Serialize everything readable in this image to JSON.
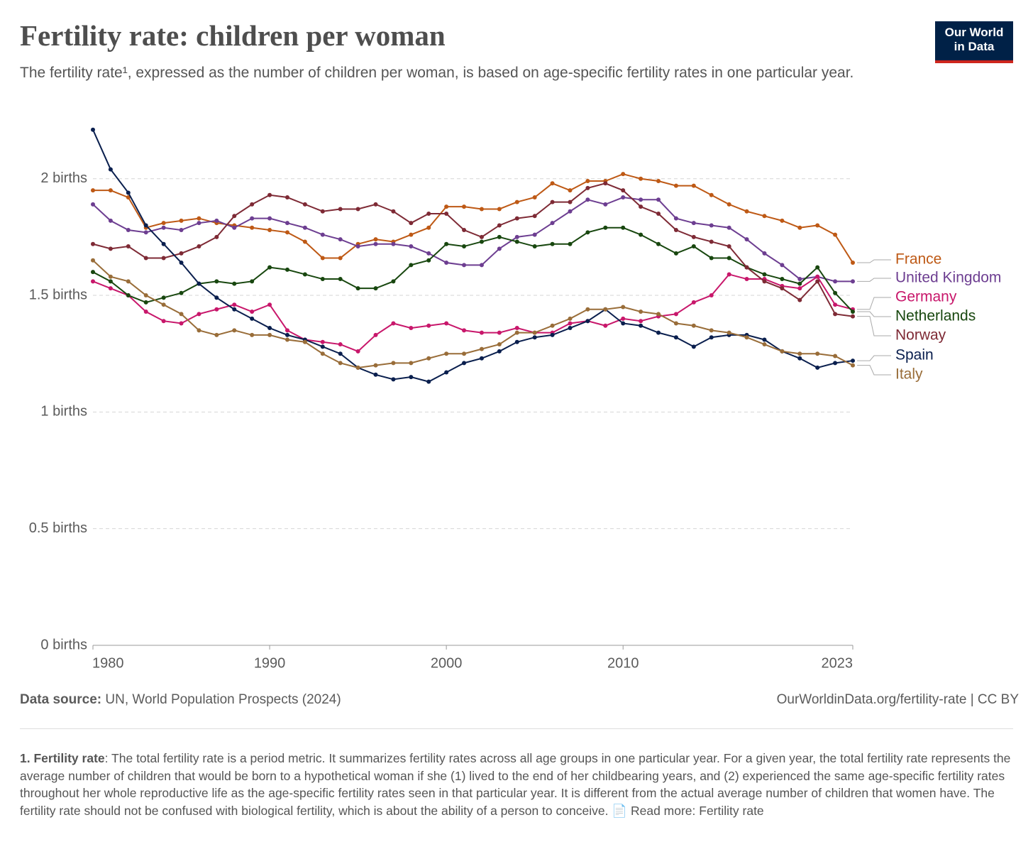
{
  "logo": {
    "line1": "Our World",
    "line2": "in Data"
  },
  "chart_data": {
    "type": "line",
    "title": "Fertility rate: children per woman",
    "subtitle": "The fertility rate¹, expressed as the number of children per woman, is based on age-specific fertility rates in one particular year.",
    "source_label": "Data source:",
    "source": "UN, World Population Prospects (2024)",
    "url": "OurWorldinData.org/fertility-rate | CC BY",
    "footnote": {
      "term": "1. Fertility rate",
      "text": ": The total fertility rate is a period metric. It summarizes fertility rates across all age groups in one particular year. For a given year, the total fertility rate represents the average number of children that would be born to a hypothetical woman if she (1) lived to the end of her childbearing years, and (2) experienced the same age-specific fertility rates throughout her whole reproductive life as the age-specific fertility rates seen in that particular year. It is different from the actual average number of children that women have. The fertility rate should not be confused with biological fertility, which is about the ability of a person to conceive.",
      "read_more": "Read more: Fertility rate"
    },
    "x": [
      1980,
      1981,
      1982,
      1983,
      1984,
      1985,
      1986,
      1987,
      1988,
      1989,
      1990,
      1991,
      1992,
      1993,
      1994,
      1995,
      1996,
      1997,
      1998,
      1999,
      2000,
      2001,
      2002,
      2003,
      2004,
      2005,
      2006,
      2007,
      2008,
      2009,
      2010,
      2011,
      2012,
      2013,
      2014,
      2015,
      2016,
      2017,
      2018,
      2019,
      2020,
      2021,
      2022,
      2023
    ],
    "xlim": [
      1980,
      2023
    ],
    "xticks": [
      1980,
      1990,
      2000,
      2010,
      2023
    ],
    "ylim": [
      0,
      2.2
    ],
    "yticks": [
      {
        "value": 0,
        "label": "0 births"
      },
      {
        "value": 0.5,
        "label": "0.5 births"
      },
      {
        "value": 1,
        "label": "1 births"
      },
      {
        "value": 1.5,
        "label": "1.5 births"
      },
      {
        "value": 2,
        "label": "2 births"
      }
    ],
    "grid": true,
    "series": [
      {
        "name": "France",
        "color": "#be5915",
        "values": [
          1.95,
          1.95,
          1.92,
          1.79,
          1.81,
          1.82,
          1.83,
          1.81,
          1.8,
          1.79,
          1.78,
          1.77,
          1.73,
          1.66,
          1.66,
          1.72,
          1.74,
          1.73,
          1.76,
          1.79,
          1.88,
          1.88,
          1.87,
          1.87,
          1.9,
          1.92,
          1.98,
          1.95,
          1.99,
          1.99,
          2.02,
          2.0,
          1.99,
          1.97,
          1.97,
          1.93,
          1.89,
          1.86,
          1.84,
          1.82,
          1.79,
          1.8,
          1.76,
          1.64
        ]
      },
      {
        "name": "United Kingdom",
        "color": "#6d3e91",
        "values": [
          1.89,
          1.82,
          1.78,
          1.77,
          1.79,
          1.78,
          1.81,
          1.82,
          1.79,
          1.83,
          1.83,
          1.81,
          1.79,
          1.76,
          1.74,
          1.71,
          1.72,
          1.72,
          1.71,
          1.68,
          1.64,
          1.63,
          1.63,
          1.7,
          1.75,
          1.76,
          1.81,
          1.86,
          1.91,
          1.89,
          1.92,
          1.91,
          1.91,
          1.83,
          1.81,
          1.8,
          1.79,
          1.74,
          1.68,
          1.63,
          1.57,
          1.58,
          1.56,
          1.56
        ]
      },
      {
        "name": "Germany",
        "color": "#c8176b",
        "values": [
          1.56,
          1.53,
          1.5,
          1.43,
          1.39,
          1.38,
          1.42,
          1.44,
          1.46,
          1.43,
          1.46,
          1.35,
          1.31,
          1.3,
          1.29,
          1.26,
          1.33,
          1.38,
          1.36,
          1.37,
          1.38,
          1.35,
          1.34,
          1.34,
          1.36,
          1.34,
          1.34,
          1.38,
          1.39,
          1.37,
          1.4,
          1.39,
          1.41,
          1.42,
          1.47,
          1.5,
          1.59,
          1.57,
          1.57,
          1.54,
          1.53,
          1.58,
          1.46,
          1.44
        ]
      },
      {
        "name": "Netherlands",
        "color": "#18470f",
        "values": [
          1.6,
          1.56,
          1.5,
          1.47,
          1.49,
          1.51,
          1.55,
          1.56,
          1.55,
          1.56,
          1.62,
          1.61,
          1.59,
          1.57,
          1.57,
          1.53,
          1.53,
          1.56,
          1.63,
          1.65,
          1.72,
          1.71,
          1.73,
          1.75,
          1.73,
          1.71,
          1.72,
          1.72,
          1.77,
          1.79,
          1.79,
          1.76,
          1.72,
          1.68,
          1.71,
          1.66,
          1.66,
          1.62,
          1.59,
          1.57,
          1.55,
          1.62,
          1.51,
          1.43
        ]
      },
      {
        "name": "Norway",
        "color": "#7e2a35",
        "values": [
          1.72,
          1.7,
          1.71,
          1.66,
          1.66,
          1.68,
          1.71,
          1.75,
          1.84,
          1.89,
          1.93,
          1.92,
          1.89,
          1.86,
          1.87,
          1.87,
          1.89,
          1.86,
          1.81,
          1.85,
          1.85,
          1.78,
          1.75,
          1.8,
          1.83,
          1.84,
          1.9,
          1.9,
          1.96,
          1.98,
          1.95,
          1.88,
          1.85,
          1.78,
          1.75,
          1.73,
          1.71,
          1.62,
          1.56,
          1.53,
          1.48,
          1.56,
          1.42,
          1.41
        ]
      },
      {
        "name": "Spain",
        "color": "#0a1f4e",
        "values": [
          2.21,
          2.04,
          1.94,
          1.8,
          1.72,
          1.64,
          1.55,
          1.49,
          1.44,
          1.4,
          1.36,
          1.33,
          1.31,
          1.28,
          1.25,
          1.19,
          1.16,
          1.14,
          1.15,
          1.13,
          1.17,
          1.21,
          1.23,
          1.26,
          1.3,
          1.32,
          1.33,
          1.36,
          1.39,
          1.44,
          1.38,
          1.37,
          1.34,
          1.32,
          1.28,
          1.32,
          1.33,
          1.33,
          1.31,
          1.26,
          1.23,
          1.19,
          1.21,
          1.22
        ]
      },
      {
        "name": "Italy",
        "color": "#996d39",
        "values": [
          1.65,
          1.58,
          1.56,
          1.5,
          1.46,
          1.42,
          1.35,
          1.33,
          1.35,
          1.33,
          1.33,
          1.31,
          1.3,
          1.25,
          1.21,
          1.19,
          1.2,
          1.21,
          1.21,
          1.23,
          1.25,
          1.25,
          1.27,
          1.29,
          1.34,
          1.34,
          1.37,
          1.4,
          1.44,
          1.44,
          1.45,
          1.43,
          1.42,
          1.38,
          1.37,
          1.35,
          1.34,
          1.32,
          1.29,
          1.26,
          1.25,
          1.25,
          1.24,
          1.2
        ]
      }
    ]
  }
}
